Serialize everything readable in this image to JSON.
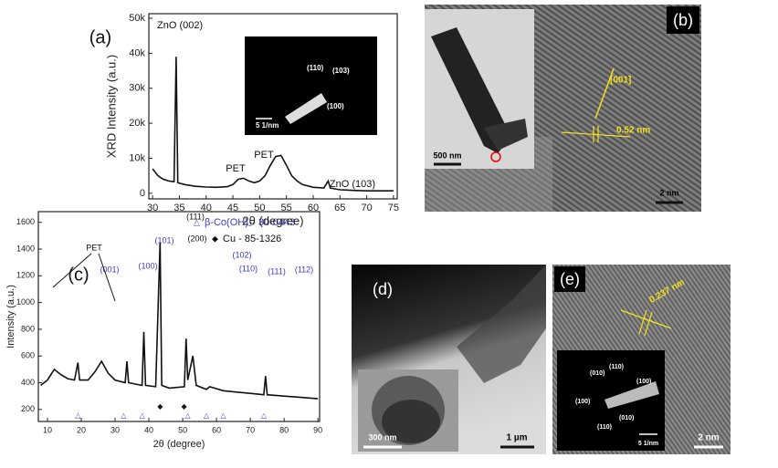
{
  "chart_data": [
    {
      "type": "line",
      "panel_label": "(a)",
      "x_label": "2θ (degree)",
      "y_label": "XRD Intensity (a.u.)",
      "x": [
        30,
        31,
        32,
        33,
        34,
        34.4,
        34.7,
        36,
        38,
        40,
        42,
        44,
        45,
        46,
        47,
        48,
        49,
        50,
        51,
        52,
        53,
        54,
        55,
        56,
        57,
        58,
        60,
        62,
        62.8,
        63.2,
        65,
        68,
        70,
        72,
        75
      ],
      "values": [
        7000,
        5000,
        4000,
        3500,
        3300,
        39000,
        3000,
        2500,
        2000,
        1800,
        1700,
        1900,
        2500,
        4000,
        4300,
        3500,
        3000,
        3500,
        5000,
        8000,
        10500,
        10800,
        8000,
        5000,
        3500,
        2500,
        1700,
        1500,
        3500,
        1500,
        1000,
        800,
        700,
        700,
        700
      ],
      "color": "#111",
      "xlim": [
        29.3,
        75.7
      ],
      "xticks": [
        30,
        35,
        40,
        45,
        50,
        55,
        60,
        65,
        70,
        75
      ],
      "ylim": [
        -1600,
        51300
      ],
      "yticks": [
        0,
        {
          "value": 10000,
          "label": "10k"
        },
        {
          "value": 20000,
          "label": "20k"
        },
        {
          "value": 30000,
          "label": "30k"
        },
        {
          "value": 40000,
          "label": "40k"
        },
        {
          "value": 50000,
          "label": "50k"
        }
      ],
      "annotations": [
        {
          "text": "ZnO (002)",
          "color": "#111"
        },
        {
          "text": "PET",
          "color": "#111"
        },
        {
          "text": "PET",
          "color": "#111"
        },
        {
          "text": "ZnO (103)",
          "color": "#111"
        }
      ],
      "inset_labels": [
        "(110)",
        "(103)",
        "(100)"
      ],
      "inset_scale": "5 1/nm"
    },
    {
      "type": "line",
      "panel_label": "(c)",
      "x_label": "2θ (degree)",
      "y_label": "Intensity (a.u.)",
      "x": [
        8,
        10,
        12,
        14,
        16,
        18,
        19,
        19.5,
        22,
        24,
        26,
        28,
        30,
        33,
        33.5,
        34,
        36,
        38,
        38.5,
        39,
        42,
        43.3,
        43.8,
        46,
        50.5,
        51,
        51.5,
        53,
        54,
        57,
        58,
        62,
        66,
        70,
        74,
        74.5,
        75,
        80,
        85,
        90
      ],
      "values": [
        380,
        420,
        500,
        460,
        430,
        420,
        550,
        420,
        420,
        480,
        560,
        470,
        420,
        400,
        560,
        400,
        390,
        380,
        780,
        380,
        370,
        1450,
        380,
        360,
        370,
        730,
        420,
        600,
        380,
        350,
        370,
        340,
        330,
        320,
        310,
        450,
        310,
        300,
        290,
        280
      ],
      "color": "#111",
      "xlim": [
        7.3,
        90.5
      ],
      "xticks": [
        10,
        20,
        30,
        40,
        50,
        60,
        70,
        80,
        90
      ],
      "ylim": [
        110,
        1680
      ],
      "yticks": [
        200,
        400,
        600,
        800,
        1000,
        1200,
        1400,
        1600
      ],
      "annotations": [
        {
          "text": "PET",
          "color": "#111"
        },
        {
          "text": "(001)",
          "color": "#3a3ac8"
        },
        {
          "text": "(100)",
          "color": "#3a3ac8"
        },
        {
          "text": "(101)",
          "color": "#3a3ac8"
        },
        {
          "text": "(111)",
          "color": "#111"
        },
        {
          "text": "(200)",
          "color": "#111"
        },
        {
          "text": "(102)",
          "color": "#3a3ac8"
        },
        {
          "text": "(110)",
          "color": "#3a3ac8"
        },
        {
          "text": "(111)",
          "color": "#3a3ac8"
        },
        {
          "text": "(112)",
          "color": "#3a3ac8"
        }
      ],
      "legend": [
        {
          "symbol": "△",
          "text": "β-Co(OH)₂- 30-0443",
          "color": "#3a3ac8"
        },
        {
          "symbol": "◆",
          "text": "Cu - 85-1326",
          "color": "#111"
        }
      ],
      "markers": [
        {
          "symbol": "△",
          "color": "#3a3ac8",
          "x": [
            19,
            32.5,
            38,
            51.5,
            57,
            62,
            74
          ]
        },
        {
          "symbol": "◆",
          "color": "#111",
          "x": [
            43.3,
            50.4
          ]
        }
      ]
    }
  ],
  "panels": {
    "b": {
      "label": "(b)",
      "inset_scale": "500 nm",
      "direction": "[001]",
      "spacing": "0.52 nm",
      "scale": "2 nm"
    },
    "d": {
      "label": "(d)",
      "inset_scale": "300 nm",
      "scale": "1 µm"
    },
    "e": {
      "label": "(e)",
      "spacing": "0.237 nm",
      "saed": [
        "(010)",
        "(110)",
        "(100)",
        "(100)",
        "(110)",
        "(010)"
      ],
      "saed_scale": "5 1/nm",
      "scale": "2 nm"
    }
  }
}
